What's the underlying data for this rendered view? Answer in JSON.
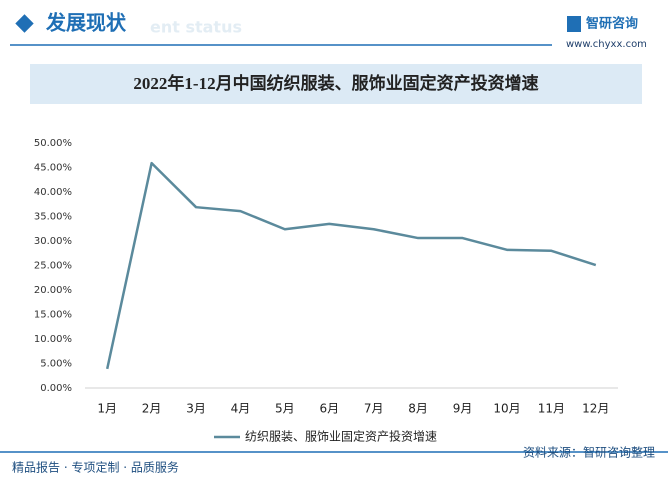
{
  "header": {
    "title": "发展现状",
    "title_en": "ent status",
    "brand": "智研咨询",
    "url": "www.chyxx.com"
  },
  "chart_data": {
    "type": "line",
    "title": "2022年1-12月中国纺织服装、服饰业固定资产投资增速",
    "categories": [
      "1月",
      "2月",
      "3月",
      "4月",
      "5月",
      "6月",
      "7月",
      "8月",
      "9月",
      "10月",
      "11月",
      "12月"
    ],
    "series": [
      {
        "name": "纺织服装、服饰业固定资产投资增速",
        "color": "#5b8a9c",
        "values": [
          3.9,
          45.9,
          36.9,
          36.1,
          32.4,
          33.5,
          32.4,
          30.6,
          30.6,
          28.2,
          28.0,
          25.1
        ]
      }
    ],
    "ylim": [
      0,
      50
    ],
    "yticks": [
      {
        "value": 0,
        "label": "0.00%"
      },
      {
        "value": 5,
        "label": "5.00%"
      },
      {
        "value": 10,
        "label": "10.00%"
      },
      {
        "value": 15,
        "label": "15.00%"
      },
      {
        "value": 20,
        "label": "20.00%"
      },
      {
        "value": 25,
        "label": "25.00%"
      },
      {
        "value": 30,
        "label": "30.00%"
      },
      {
        "value": 35,
        "label": "35.00%"
      },
      {
        "value": 40,
        "label": "40.00%"
      },
      {
        "value": 45,
        "label": "45.00%"
      },
      {
        "value": 50,
        "label": "50.00%"
      }
    ],
    "grid": false,
    "legend": "bottom"
  },
  "footer": {
    "slogan": "精品报告 · 专项定制 · 品质服务",
    "source": "资料来源：智研咨询整理"
  }
}
